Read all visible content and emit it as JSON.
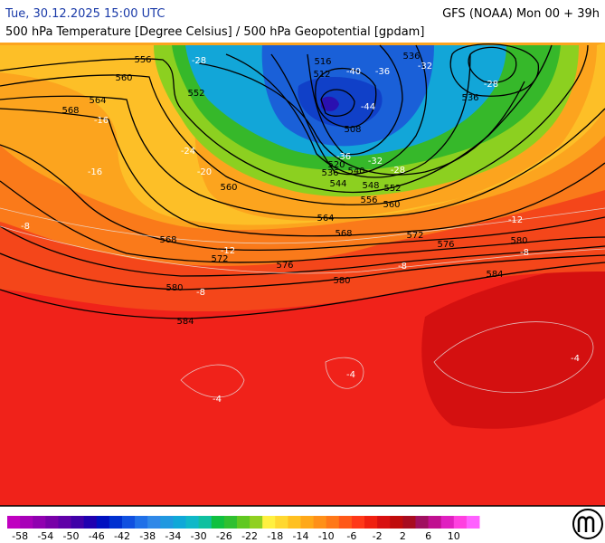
{
  "header": {
    "date": "Tue, 30.12.2025 15:00 UTC",
    "model": "GFS (NOAA) Mon 00 + 39h",
    "subtitle": "500 hPa Temperature [Degree Celsius] / 500 hPa Geopotential [gpdam]"
  },
  "geopotential_labels": [
    556,
    560,
    564,
    568,
    552,
    516,
    512,
    508,
    536,
    536,
    520,
    536,
    540,
    544,
    548,
    552,
    556,
    560,
    560,
    564,
    568,
    572,
    576,
    580,
    568,
    572,
    576,
    580,
    580,
    584,
    584
  ],
  "temperature_labels": [
    -28,
    -40,
    -36,
    -44,
    -32,
    -28,
    -24,
    -20,
    -36,
    -32,
    -28,
    -16,
    -12,
    -8,
    -8,
    -8,
    -4,
    -4,
    -4,
    -8,
    -12,
    -16
  ],
  "colorbar": {
    "ticks": [
      -58,
      -54,
      -50,
      -46,
      -42,
      -38,
      -34,
      -30,
      -26,
      -22,
      -18,
      -14,
      -10,
      -6,
      -2,
      2,
      6,
      10
    ],
    "colors": [
      "#c000c0",
      "#a800b8",
      "#9000b0",
      "#7800a8",
      "#6000a8",
      "#4000a8",
      "#2000b0",
      "#0010c0",
      "#0030d0",
      "#1050e0",
      "#2070e8",
      "#3088e8",
      "#2098e0",
      "#10a8d8",
      "#10b8c8",
      "#10c0a0",
      "#10c040",
      "#30c030",
      "#60c820",
      "#90d020",
      "#fff040",
      "#ffd830",
      "#ffc020",
      "#ffa818",
      "#ff9018",
      "#ff7818",
      "#ff5818",
      "#ff3818",
      "#f02010",
      "#d81010",
      "#c00c0c",
      "#a80c20",
      "#a01060",
      "#c01090",
      "#e020c0",
      "#ff40e0",
      "#ff60ff"
    ]
  }
}
